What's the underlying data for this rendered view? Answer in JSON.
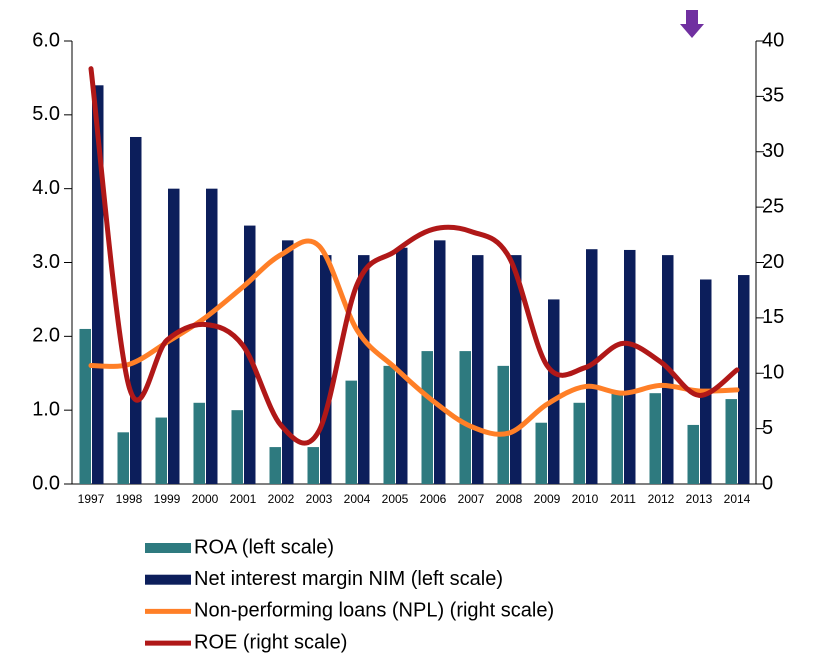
{
  "chart_data": {
    "type": "combo",
    "categories": [
      "1997",
      "1998",
      "1999",
      "2000",
      "2001",
      "2002",
      "2003",
      "2004",
      "2005",
      "2006",
      "2007",
      "2008",
      "2009",
      "2010",
      "2011",
      "2012",
      "2013",
      "2014"
    ],
    "ylim": [
      0,
      6
    ],
    "yticks": [
      {
        "value": 0,
        "label": "0.0"
      },
      {
        "value": 1,
        "label": "1.0"
      },
      {
        "value": 2,
        "label": "2.0"
      },
      {
        "value": 3,
        "label": "3.0"
      },
      {
        "value": 4,
        "label": "4.0"
      },
      {
        "value": 5,
        "label": "5.0"
      },
      {
        "value": 6,
        "label": "6.0"
      }
    ],
    "y2lim": [
      0,
      40
    ],
    "y2ticks": [
      0,
      5,
      10,
      15,
      20,
      25,
      30,
      35,
      40
    ],
    "series": [
      {
        "name": "ROA (left scale)",
        "type": "bar",
        "axis": "y",
        "color": "#2e7a7f",
        "values": [
          2.1,
          0.7,
          0.9,
          1.1,
          1.0,
          0.5,
          0.5,
          1.4,
          1.6,
          1.8,
          1.8,
          1.6,
          0.83,
          1.1,
          1.25,
          1.23,
          0.8,
          1.15
        ]
      },
      {
        "name": "Net interest margin NIM (left scale)",
        "type": "bar",
        "axis": "y",
        "color": "#0c1e5b",
        "values": [
          5.4,
          4.7,
          4.0,
          4.0,
          3.5,
          3.3,
          3.1,
          3.1,
          3.2,
          3.3,
          3.1,
          3.1,
          2.5,
          3.18,
          3.17,
          3.1,
          2.77,
          2.83
        ]
      },
      {
        "name": "Non-performing loans (NPL) (right scale)",
        "type": "line",
        "axis": "y2",
        "color": "#ff7f27",
        "values": [
          10.7,
          10.8,
          12.8,
          15.0,
          17.8,
          20.7,
          21.5,
          13.9,
          10.5,
          7.5,
          5.2,
          4.6,
          7.2,
          8.8,
          8.2,
          8.9,
          8.4,
          8.5
        ]
      },
      {
        "name": "ROE (right scale)",
        "type": "line",
        "axis": "y2",
        "color": "#b01818",
        "values": [
          37.5,
          8.8,
          13.0,
          14.4,
          12.5,
          5.3,
          4.8,
          18.0,
          21.0,
          23.0,
          22.8,
          20.5,
          10.7,
          10.5,
          12.7,
          11.0,
          8.0,
          10.3
        ]
      }
    ]
  }
}
